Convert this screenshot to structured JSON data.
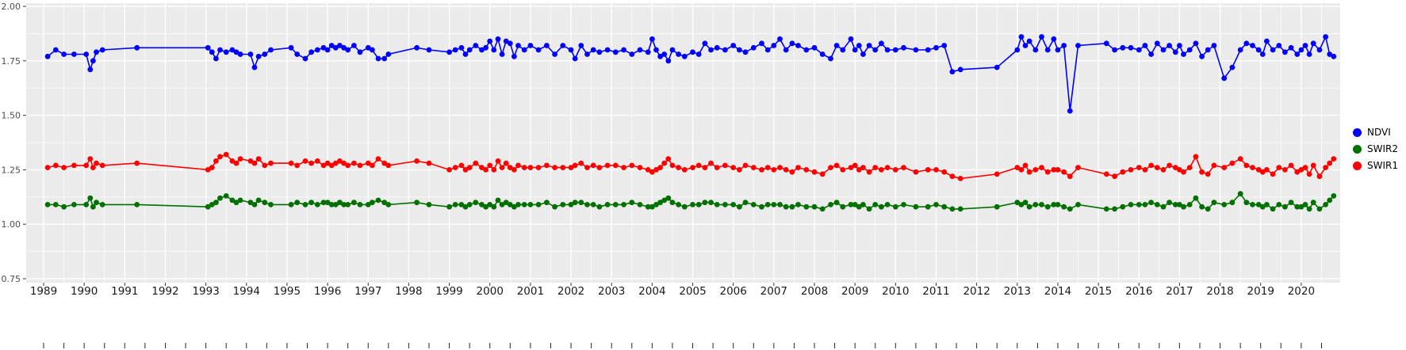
{
  "figure": {
    "background_color": "#FFFFFF",
    "title": ""
  },
  "chart_data": {
    "type": "line",
    "title": "",
    "xlabel": "",
    "ylabel": "",
    "grid": true,
    "panel_background": "#EBEBEB",
    "grid_color": "#FFFFFF",
    "legend_position": "right",
    "xlim": [
      1988.57,
      2020.96
    ],
    "ylim": [
      0.75,
      2.0
    ],
    "x_ticks": [
      1989,
      1990,
      1991,
      1992,
      1993,
      1994,
      1995,
      1996,
      1997,
      1998,
      1999,
      2000,
      2001,
      2002,
      2003,
      2004,
      2005,
      2006,
      2007,
      2008,
      2009,
      2010,
      2011,
      2012,
      2013,
      2014,
      2015,
      2016,
      2017,
      2018,
      2019,
      2020
    ],
    "x_tick_labels": [
      "1989",
      "1990",
      "1991",
      "1992",
      "1993",
      "1994",
      "1995",
      "1996",
      "1997",
      "1998",
      "1999",
      "2000",
      "2001",
      "2002",
      "2003",
      "2004",
      "2005",
      "2006",
      "2007",
      "2008",
      "2009",
      "2010",
      "2011",
      "2012",
      "2013",
      "2014",
      "2015",
      "2016",
      "2017",
      "2018",
      "2019",
      "2020"
    ],
    "y_ticks": [
      2.0,
      1.75,
      1.5,
      1.25,
      1.0,
      0.75
    ],
    "y_tick_labels": [
      "2.00",
      "1.75",
      "1.50",
      "1.25",
      "1.00",
      "0.75"
    ],
    "x": [
      1989.1,
      1989.3,
      1989.5,
      1989.75,
      1990.05,
      1990.15,
      1990.22,
      1990.3,
      1990.45,
      1991.3,
      1993.05,
      1993.15,
      1993.25,
      1993.35,
      1993.5,
      1993.65,
      1993.75,
      1993.85,
      1994.1,
      1994.2,
      1994.3,
      1994.45,
      1994.6,
      1995.1,
      1995.25,
      1995.45,
      1995.6,
      1995.75,
      1995.9,
      1996.0,
      1996.1,
      1996.2,
      1996.3,
      1996.4,
      1996.5,
      1996.65,
      1996.8,
      1997.0,
      1997.1,
      1997.25,
      1997.4,
      1997.5,
      1998.2,
      1998.5,
      1999.0,
      1999.15,
      1999.3,
      1999.4,
      1999.5,
      1999.65,
      1999.8,
      1999.9,
      2000.0,
      2000.1,
      2000.2,
      2000.3,
      2000.4,
      2000.5,
      2000.6,
      2000.7,
      2000.85,
      2001.0,
      2001.2,
      2001.4,
      2001.6,
      2001.8,
      2002.0,
      2002.1,
      2002.25,
      2002.4,
      2002.55,
      2002.7,
      2002.9,
      2003.1,
      2003.3,
      2003.5,
      2003.7,
      2003.9,
      2004.0,
      2004.1,
      2004.2,
      2004.3,
      2004.4,
      2004.5,
      2004.65,
      2004.8,
      2005.0,
      2005.15,
      2005.3,
      2005.45,
      2005.6,
      2005.8,
      2006.0,
      2006.15,
      2006.3,
      2006.5,
      2006.7,
      2006.85,
      2007.0,
      2007.15,
      2007.3,
      2007.45,
      2007.6,
      2007.8,
      2008.0,
      2008.2,
      2008.4,
      2008.55,
      2008.7,
      2008.9,
      2009.0,
      2009.1,
      2009.2,
      2009.35,
      2009.5,
      2009.65,
      2009.8,
      2010.0,
      2010.2,
      2010.5,
      2010.8,
      2011.0,
      2011.2,
      2011.4,
      2011.6,
      2012.5,
      2013.0,
      2013.1,
      2013.2,
      2013.3,
      2013.45,
      2013.6,
      2013.75,
      2013.9,
      2014.0,
      2014.15,
      2014.3,
      2014.5,
      2015.2,
      2015.4,
      2015.6,
      2015.8,
      2016.0,
      2016.15,
      2016.3,
      2016.45,
      2016.6,
      2016.75,
      2016.9,
      2017.0,
      2017.1,
      2017.25,
      2017.4,
      2017.55,
      2017.7,
      2017.85,
      2018.1,
      2018.3,
      2018.5,
      2018.65,
      2018.8,
      2018.95,
      2019.05,
      2019.15,
      2019.3,
      2019.45,
      2019.6,
      2019.75,
      2019.9,
      2020.0,
      2020.1,
      2020.2,
      2020.3,
      2020.45,
      2020.6,
      2020.7,
      2020.8
    ],
    "series": [
      {
        "name": "NDVI",
        "color": "#0000FF",
        "values": [
          1.77,
          1.8,
          1.78,
          1.78,
          1.78,
          1.71,
          1.75,
          1.79,
          1.8,
          1.81,
          1.81,
          1.79,
          1.76,
          1.8,
          1.79,
          1.8,
          1.79,
          1.78,
          1.78,
          1.72,
          1.77,
          1.78,
          1.8,
          1.81,
          1.78,
          1.76,
          1.79,
          1.8,
          1.81,
          1.8,
          1.82,
          1.81,
          1.82,
          1.81,
          1.8,
          1.82,
          1.79,
          1.81,
          1.8,
          1.76,
          1.76,
          1.78,
          1.81,
          1.8,
          1.79,
          1.8,
          1.81,
          1.78,
          1.8,
          1.82,
          1.8,
          1.81,
          1.84,
          1.8,
          1.85,
          1.78,
          1.84,
          1.83,
          1.77,
          1.82,
          1.8,
          1.82,
          1.8,
          1.82,
          1.78,
          1.82,
          1.8,
          1.76,
          1.82,
          1.78,
          1.8,
          1.79,
          1.8,
          1.79,
          1.8,
          1.78,
          1.8,
          1.79,
          1.85,
          1.8,
          1.77,
          1.78,
          1.75,
          1.8,
          1.78,
          1.77,
          1.79,
          1.78,
          1.83,
          1.8,
          1.81,
          1.8,
          1.82,
          1.8,
          1.79,
          1.81,
          1.83,
          1.8,
          1.82,
          1.85,
          1.8,
          1.83,
          1.82,
          1.8,
          1.81,
          1.78,
          1.76,
          1.82,
          1.8,
          1.85,
          1.8,
          1.82,
          1.78,
          1.82,
          1.8,
          1.83,
          1.8,
          1.8,
          1.81,
          1.8,
          1.8,
          1.81,
          1.82,
          1.7,
          1.71,
          1.72,
          1.8,
          1.86,
          1.82,
          1.84,
          1.8,
          1.86,
          1.8,
          1.85,
          1.8,
          1.82,
          1.52,
          1.82,
          1.83,
          1.8,
          1.81,
          1.81,
          1.8,
          1.82,
          1.78,
          1.83,
          1.8,
          1.82,
          1.79,
          1.82,
          1.78,
          1.8,
          1.83,
          1.77,
          1.8,
          1.82,
          1.67,
          1.72,
          1.8,
          1.83,
          1.82,
          1.8,
          1.78,
          1.84,
          1.8,
          1.82,
          1.79,
          1.81,
          1.78,
          1.8,
          1.82,
          1.78,
          1.83,
          1.8,
          1.86,
          1.78,
          1.77
        ]
      },
      {
        "name": "SWIR2",
        "color": "#007000",
        "values": [
          1.09,
          1.09,
          1.08,
          1.09,
          1.09,
          1.12,
          1.08,
          1.1,
          1.09,
          1.09,
          1.08,
          1.09,
          1.1,
          1.12,
          1.13,
          1.11,
          1.1,
          1.11,
          1.1,
          1.09,
          1.11,
          1.1,
          1.09,
          1.09,
          1.1,
          1.09,
          1.1,
          1.09,
          1.1,
          1.1,
          1.09,
          1.09,
          1.1,
          1.09,
          1.09,
          1.1,
          1.09,
          1.09,
          1.1,
          1.11,
          1.1,
          1.09,
          1.1,
          1.09,
          1.08,
          1.09,
          1.09,
          1.08,
          1.09,
          1.1,
          1.09,
          1.08,
          1.09,
          1.08,
          1.11,
          1.09,
          1.1,
          1.09,
          1.08,
          1.09,
          1.09,
          1.09,
          1.09,
          1.1,
          1.08,
          1.09,
          1.09,
          1.1,
          1.1,
          1.09,
          1.09,
          1.08,
          1.09,
          1.09,
          1.09,
          1.1,
          1.09,
          1.08,
          1.08,
          1.09,
          1.1,
          1.11,
          1.12,
          1.1,
          1.09,
          1.08,
          1.09,
          1.09,
          1.1,
          1.1,
          1.09,
          1.09,
          1.09,
          1.08,
          1.1,
          1.09,
          1.08,
          1.09,
          1.09,
          1.09,
          1.08,
          1.08,
          1.09,
          1.08,
          1.08,
          1.07,
          1.09,
          1.1,
          1.08,
          1.09,
          1.09,
          1.08,
          1.09,
          1.07,
          1.09,
          1.08,
          1.09,
          1.08,
          1.09,
          1.08,
          1.08,
          1.09,
          1.08,
          1.07,
          1.07,
          1.08,
          1.1,
          1.09,
          1.1,
          1.08,
          1.09,
          1.09,
          1.08,
          1.09,
          1.09,
          1.08,
          1.07,
          1.09,
          1.07,
          1.07,
          1.08,
          1.09,
          1.09,
          1.09,
          1.1,
          1.09,
          1.08,
          1.1,
          1.09,
          1.09,
          1.08,
          1.09,
          1.12,
          1.08,
          1.07,
          1.1,
          1.09,
          1.1,
          1.14,
          1.1,
          1.09,
          1.09,
          1.08,
          1.09,
          1.07,
          1.09,
          1.08,
          1.1,
          1.08,
          1.08,
          1.09,
          1.07,
          1.1,
          1.07,
          1.09,
          1.11,
          1.13
        ]
      },
      {
        "name": "SWIR1",
        "color": "#FF0000",
        "values": [
          1.26,
          1.27,
          1.26,
          1.27,
          1.27,
          1.3,
          1.26,
          1.28,
          1.27,
          1.28,
          1.25,
          1.26,
          1.29,
          1.31,
          1.32,
          1.29,
          1.28,
          1.3,
          1.29,
          1.28,
          1.3,
          1.27,
          1.28,
          1.28,
          1.27,
          1.29,
          1.28,
          1.29,
          1.27,
          1.28,
          1.27,
          1.28,
          1.29,
          1.28,
          1.27,
          1.28,
          1.27,
          1.28,
          1.27,
          1.3,
          1.28,
          1.27,
          1.29,
          1.28,
          1.25,
          1.26,
          1.27,
          1.25,
          1.26,
          1.28,
          1.26,
          1.25,
          1.27,
          1.25,
          1.29,
          1.26,
          1.28,
          1.26,
          1.25,
          1.27,
          1.26,
          1.26,
          1.26,
          1.27,
          1.26,
          1.26,
          1.26,
          1.27,
          1.28,
          1.26,
          1.27,
          1.26,
          1.27,
          1.27,
          1.26,
          1.27,
          1.26,
          1.25,
          1.24,
          1.25,
          1.26,
          1.28,
          1.3,
          1.27,
          1.26,
          1.25,
          1.26,
          1.27,
          1.26,
          1.28,
          1.26,
          1.27,
          1.26,
          1.25,
          1.27,
          1.26,
          1.25,
          1.26,
          1.25,
          1.26,
          1.25,
          1.24,
          1.26,
          1.25,
          1.24,
          1.23,
          1.26,
          1.27,
          1.25,
          1.26,
          1.27,
          1.25,
          1.26,
          1.24,
          1.26,
          1.25,
          1.26,
          1.25,
          1.26,
          1.24,
          1.25,
          1.25,
          1.24,
          1.22,
          1.21,
          1.23,
          1.26,
          1.25,
          1.27,
          1.24,
          1.25,
          1.26,
          1.24,
          1.25,
          1.25,
          1.24,
          1.22,
          1.26,
          1.23,
          1.22,
          1.24,
          1.25,
          1.26,
          1.25,
          1.27,
          1.26,
          1.25,
          1.27,
          1.26,
          1.25,
          1.24,
          1.26,
          1.31,
          1.24,
          1.23,
          1.27,
          1.26,
          1.28,
          1.3,
          1.27,
          1.26,
          1.25,
          1.24,
          1.25,
          1.23,
          1.26,
          1.25,
          1.27,
          1.24,
          1.25,
          1.26,
          1.23,
          1.27,
          1.22,
          1.26,
          1.28,
          1.3
        ]
      }
    ]
  }
}
